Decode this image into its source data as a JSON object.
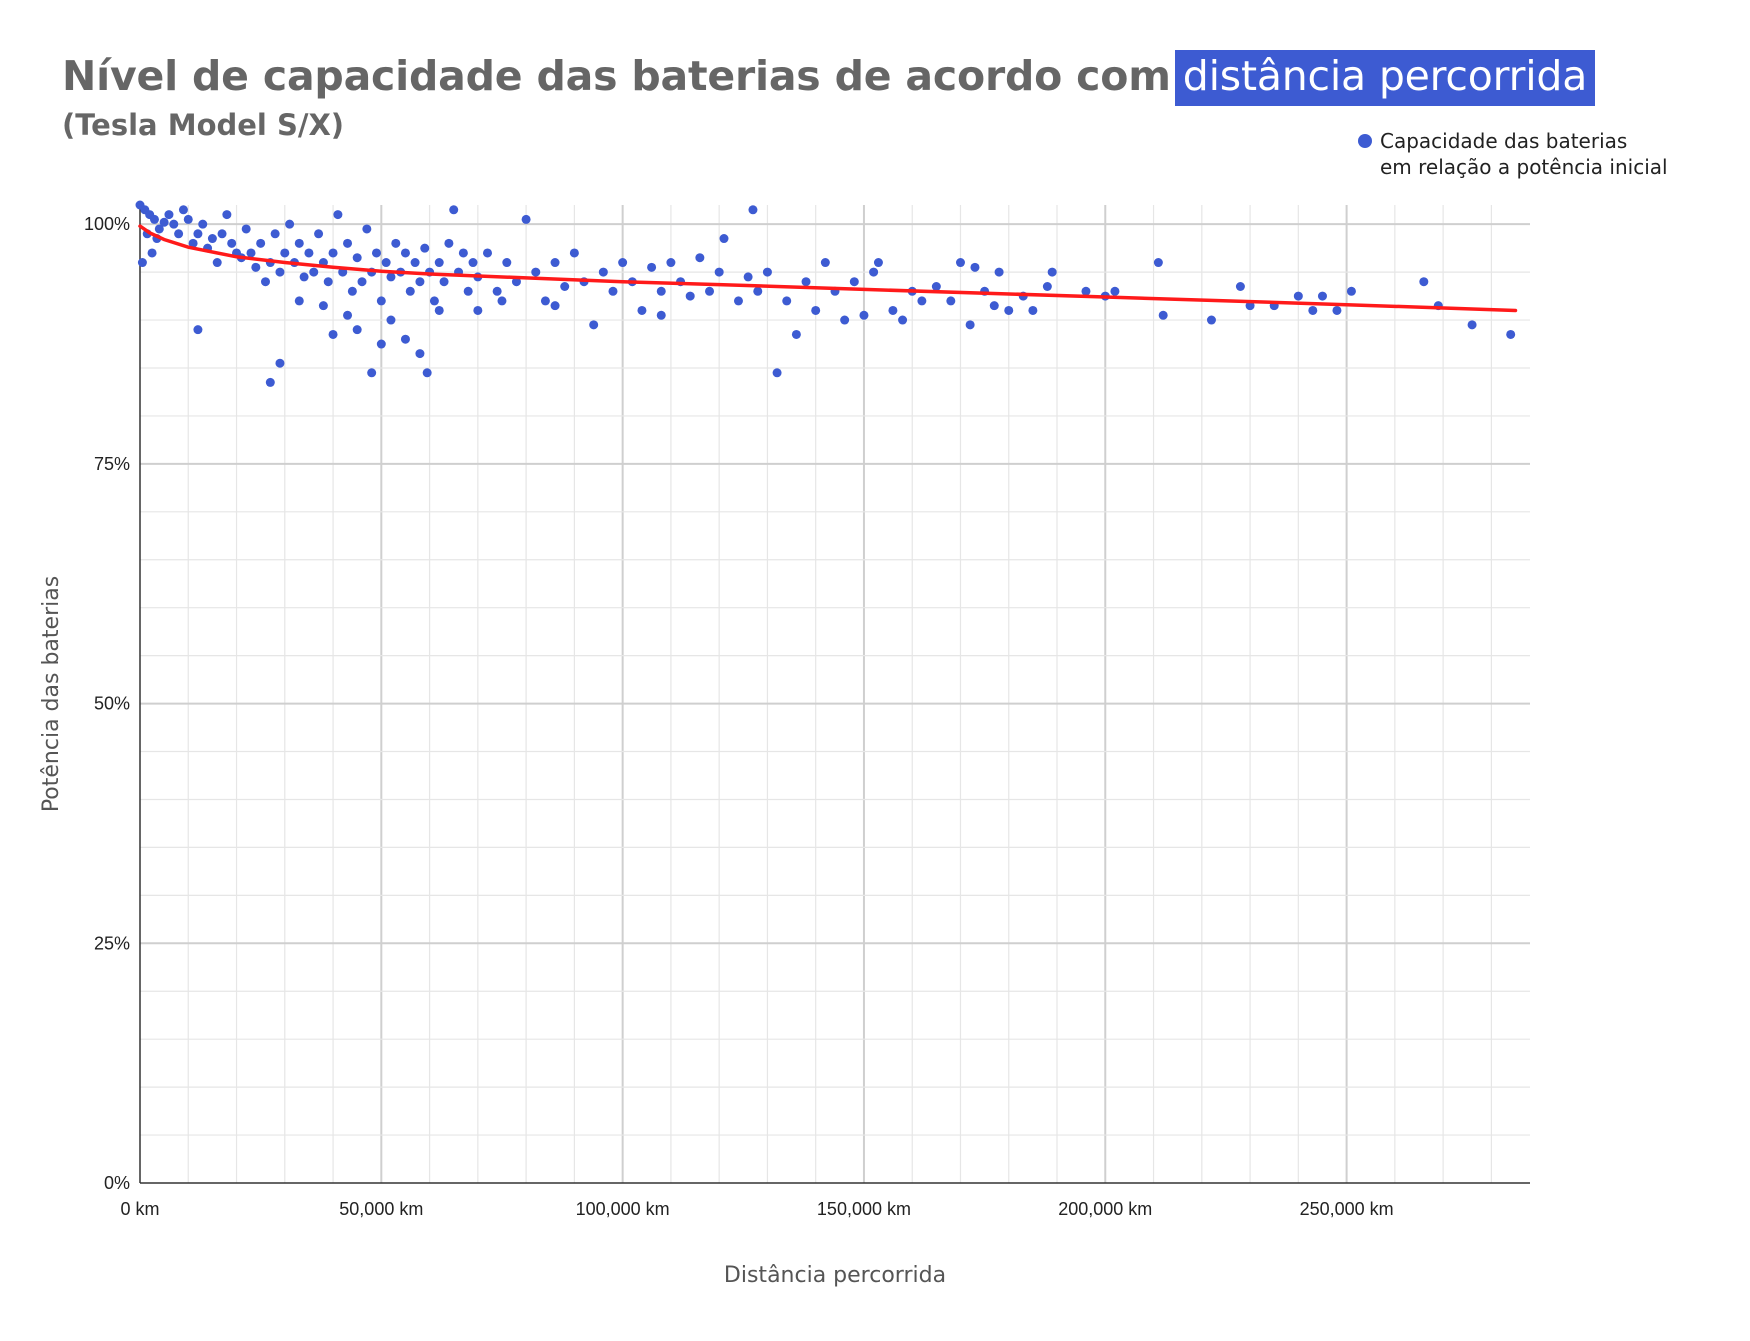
{
  "title": {
    "main": "Nível de capacidade das baterias de acordo com",
    "highlight": "distância percorrida",
    "subtitle": "(Tesla Model S/X)"
  },
  "legend": {
    "line1": "Capacidade das baterias",
    "line2": "em relação a potência inicial",
    "color": "#3d5bd2"
  },
  "chart_data": {
    "type": "scatter",
    "xlabel": "Distância percorrida",
    "ylabel": "Potência das baterias",
    "xlim": [
      0,
      288000
    ],
    "ylim": [
      0,
      102
    ],
    "grid": true,
    "legend_position": "top-right",
    "x_ticks": [
      {
        "value": 0,
        "label": "0 km"
      },
      {
        "value": 50000,
        "label": "50,000 km"
      },
      {
        "value": 100000,
        "label": "100,000 km"
      },
      {
        "value": 150000,
        "label": "150,000 km"
      },
      {
        "value": 200000,
        "label": "200,000 km"
      },
      {
        "value": 250000,
        "label": "250,000 km"
      }
    ],
    "y_ticks": [
      {
        "value": 0,
        "label": "0%"
      },
      {
        "value": 25,
        "label": "25%"
      },
      {
        "value": 50,
        "label": "50%"
      },
      {
        "value": 75,
        "label": "75%"
      },
      {
        "value": 100,
        "label": "100%"
      }
    ],
    "point_color": "#3d5bd2",
    "trend_color": "#ff1a1a",
    "series": [
      {
        "name": "Capacidade das baterias em relação a potência inicial",
        "points": [
          [
            0,
            102
          ],
          [
            1000,
            101.5
          ],
          [
            2000,
            101
          ],
          [
            3000,
            100.5
          ],
          [
            1500,
            99
          ],
          [
            2500,
            97
          ],
          [
            500,
            96
          ],
          [
            3500,
            98.5
          ],
          [
            4000,
            99.5
          ],
          [
            5000,
            100.2
          ],
          [
            6000,
            101
          ],
          [
            7000,
            100
          ],
          [
            8000,
            99
          ],
          [
            9000,
            101.5
          ],
          [
            10000,
            100.5
          ],
          [
            11000,
            98
          ],
          [
            12000,
            99
          ],
          [
            13000,
            100
          ],
          [
            14000,
            97.5
          ],
          [
            15000,
            98.5
          ],
          [
            16000,
            96
          ],
          [
            17000,
            99
          ],
          [
            18000,
            101
          ],
          [
            19000,
            98
          ],
          [
            20000,
            97
          ],
          [
            21000,
            96.5
          ],
          [
            22000,
            99.5
          ],
          [
            23000,
            97
          ],
          [
            24000,
            95.5
          ],
          [
            25000,
            98
          ],
          [
            26000,
            94
          ],
          [
            27000,
            96
          ],
          [
            28000,
            99
          ],
          [
            29000,
            95
          ],
          [
            30000,
            97
          ],
          [
            31000,
            100
          ],
          [
            32000,
            96
          ],
          [
            33000,
            98
          ],
          [
            34000,
            94.5
          ],
          [
            35000,
            97
          ],
          [
            36000,
            95
          ],
          [
            37000,
            99
          ],
          [
            38000,
            96
          ],
          [
            39000,
            94
          ],
          [
            40000,
            97
          ],
          [
            41000,
            101
          ],
          [
            42000,
            95
          ],
          [
            43000,
            98
          ],
          [
            44000,
            93
          ],
          [
            45000,
            96.5
          ],
          [
            46000,
            94
          ],
          [
            47000,
            99.5
          ],
          [
            48000,
            95
          ],
          [
            49000,
            97
          ],
          [
            50000,
            92
          ],
          [
            51000,
            96
          ],
          [
            52000,
            94.5
          ],
          [
            53000,
            98
          ],
          [
            54000,
            95
          ],
          [
            55000,
            97
          ],
          [
            56000,
            93
          ],
          [
            57000,
            96
          ],
          [
            58000,
            94
          ],
          [
            59000,
            97.5
          ],
          [
            60000,
            95
          ],
          [
            61000,
            92
          ],
          [
            62000,
            96
          ],
          [
            63000,
            94
          ],
          [
            64000,
            98
          ],
          [
            65000,
            101.5
          ],
          [
            66000,
            95
          ],
          [
            67000,
            97
          ],
          [
            68000,
            93
          ],
          [
            69000,
            96
          ],
          [
            70000,
            94.5
          ],
          [
            72000,
            97
          ],
          [
            74000,
            93
          ],
          [
            76000,
            96
          ],
          [
            78000,
            94
          ],
          [
            80000,
            100.5
          ],
          [
            82000,
            95
          ],
          [
            84000,
            92
          ],
          [
            86000,
            96
          ],
          [
            88000,
            93.5
          ],
          [
            90000,
            97
          ],
          [
            92000,
            94
          ],
          [
            94000,
            89.5
          ],
          [
            96000,
            95
          ],
          [
            98000,
            93
          ],
          [
            100000,
            96
          ],
          [
            102000,
            94
          ],
          [
            104000,
            91
          ],
          [
            106000,
            95.5
          ],
          [
            108000,
            93
          ],
          [
            110000,
            96
          ],
          [
            112000,
            94
          ],
          [
            114000,
            92.5
          ],
          [
            116000,
            96.5
          ],
          [
            118000,
            93
          ],
          [
            120000,
            95
          ],
          [
            121000,
            98.5
          ],
          [
            124000,
            92
          ],
          [
            126000,
            94.5
          ],
          [
            127000,
            101.5
          ],
          [
            128000,
            93
          ],
          [
            130000,
            95
          ],
          [
            132000,
            84.5
          ],
          [
            134000,
            92
          ],
          [
            136000,
            88.5
          ],
          [
            138000,
            94
          ],
          [
            140000,
            91
          ],
          [
            142000,
            96
          ],
          [
            144000,
            93
          ],
          [
            146000,
            90
          ],
          [
            148000,
            94
          ],
          [
            150000,
            90.5
          ],
          [
            152000,
            95
          ],
          [
            153000,
            96
          ],
          [
            156000,
            91
          ],
          [
            158000,
            90
          ],
          [
            160000,
            93
          ],
          [
            162000,
            92
          ],
          [
            165000,
            93.5
          ],
          [
            168000,
            92
          ],
          [
            170000,
            96
          ],
          [
            172000,
            89.5
          ],
          [
            173000,
            95.5
          ],
          [
            175000,
            93
          ],
          [
            177000,
            91.5
          ],
          [
            178000,
            95
          ],
          [
            180000,
            91
          ],
          [
            183000,
            92.5
          ],
          [
            185000,
            91
          ],
          [
            188000,
            93.5
          ],
          [
            189000,
            95
          ],
          [
            196000,
            93
          ],
          [
            200000,
            92.5
          ],
          [
            202000,
            93
          ],
          [
            211000,
            96
          ],
          [
            212000,
            90.5
          ],
          [
            222000,
            90
          ],
          [
            228000,
            93.5
          ],
          [
            230000,
            91.5
          ],
          [
            235000,
            91.5
          ],
          [
            240000,
            92.5
          ],
          [
            243000,
            91
          ],
          [
            245000,
            92.5
          ],
          [
            248000,
            91
          ],
          [
            251000,
            93
          ],
          [
            266000,
            94
          ],
          [
            269000,
            91.5
          ],
          [
            276000,
            89.5
          ],
          [
            284000,
            88.5
          ],
          [
            27000,
            83.5
          ],
          [
            29000,
            85.5
          ],
          [
            12000,
            89
          ],
          [
            40000,
            88.5
          ],
          [
            45000,
            89
          ],
          [
            48000,
            84.5
          ],
          [
            50000,
            87.5
          ],
          [
            55000,
            88
          ],
          [
            58000,
            86.5
          ],
          [
            59500,
            84.5
          ],
          [
            43000,
            90.5
          ],
          [
            38000,
            91.5
          ],
          [
            52000,
            90
          ],
          [
            62000,
            91
          ],
          [
            33000,
            92
          ],
          [
            70000,
            91
          ],
          [
            75000,
            92
          ],
          [
            86000,
            91.5
          ],
          [
            108000,
            90.5
          ]
        ]
      }
    ],
    "trend": [
      [
        0,
        99.8
      ],
      [
        2000,
        99.1
      ],
      [
        5000,
        98.4
      ],
      [
        10000,
        97.6
      ],
      [
        20000,
        96.6
      ],
      [
        30000,
        96.0
      ],
      [
        40000,
        95.5
      ],
      [
        50000,
        95.1
      ],
      [
        60000,
        94.8
      ],
      [
        80000,
        94.4
      ],
      [
        100000,
        94.0
      ],
      [
        120000,
        93.7
      ],
      [
        150000,
        93.2
      ],
      [
        200000,
        92.4
      ],
      [
        250000,
        91.6
      ],
      [
        285000,
        91.0
      ]
    ]
  }
}
